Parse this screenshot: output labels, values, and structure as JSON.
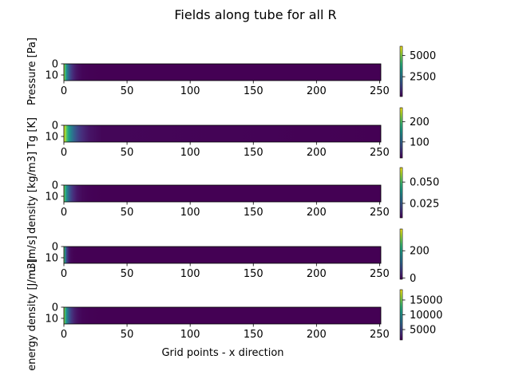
{
  "figure": {
    "title": "Fields along tube for all R",
    "xlabel": "Grid points - x direction"
  },
  "colormap": [
    "#440154",
    "#482878",
    "#3e4989",
    "#31688e",
    "#26828e",
    "#1f9e89",
    "#35b779",
    "#6ece58",
    "#b5de2b",
    "#fde725"
  ],
  "chart_data": [
    {
      "type": "heatmap",
      "ylabel": "Pressure [Pa]",
      "x_ticks": [
        "0",
        "50",
        "100",
        "150",
        "200",
        "250"
      ],
      "y_ticks": [
        "0",
        "10"
      ],
      "xlim": [
        0,
        251
      ],
      "ylim": [
        15,
        0
      ],
      "colorbar": {
        "vmin": 150,
        "vmax": 6100,
        "ticks": [
          {
            "v": 2500,
            "label": "2500"
          },
          {
            "v": 5000,
            "label": "5000"
          }
        ]
      },
      "decay_length": 3.5,
      "peak_fraction": 0.93
    },
    {
      "type": "heatmap",
      "ylabel": "Tg [K]",
      "x_ticks": [
        "0",
        "50",
        "100",
        "150",
        "200",
        "250"
      ],
      "y_ticks": [
        "0",
        "10"
      ],
      "xlim": [
        0,
        251
      ],
      "ylim": [
        15,
        0
      ],
      "colorbar": {
        "vmin": 20,
        "vmax": 270,
        "ticks": [
          {
            "v": 100,
            "label": "100"
          },
          {
            "v": 200,
            "label": "200"
          }
        ]
      },
      "decay_length": 7.0,
      "peak_fraction": 1.0
    },
    {
      "type": "heatmap",
      "ylabel": "density [kg/m3]",
      "x_ticks": [
        "0",
        "50",
        "100",
        "150",
        "200",
        "250"
      ],
      "y_ticks": [
        "0",
        "10"
      ],
      "xlim": [
        0,
        251
      ],
      "ylim": [
        15,
        0
      ],
      "colorbar": {
        "vmin": 0.008,
        "vmax": 0.067,
        "ticks": [
          {
            "v": 0.025,
            "label": "0.025"
          },
          {
            "v": 0.05,
            "label": "0.050"
          }
        ]
      },
      "decay_length": 4.0,
      "peak_fraction": 0.85
    },
    {
      "type": "heatmap",
      "ylabel": "u [m/s]",
      "x_ticks": [
        "0",
        "50",
        "100",
        "150",
        "200",
        "250"
      ],
      "y_ticks": [
        "0",
        "10"
      ],
      "xlim": [
        0,
        251
      ],
      "ylim": [
        15,
        0
      ],
      "colorbar": {
        "vmin": -10,
        "vmax": 360,
        "ticks": [
          {
            "v": 0,
            "label": "0"
          },
          {
            "v": 200,
            "label": "200"
          }
        ]
      },
      "decay_length": 1.5,
      "peak_fraction": 0.9
    },
    {
      "type": "heatmap",
      "ylabel": "energy density [J/m3]",
      "x_ticks": [
        "0",
        "50",
        "100",
        "150",
        "200",
        "250"
      ],
      "y_ticks": [
        "0",
        "10"
      ],
      "xlim": [
        0,
        251
      ],
      "ylim": [
        15,
        0
      ],
      "colorbar": {
        "vmin": 1500,
        "vmax": 18500,
        "ticks": [
          {
            "v": 5000,
            "label": "5000"
          },
          {
            "v": 10000,
            "label": "10000"
          },
          {
            "v": 15000,
            "label": "15000"
          }
        ]
      },
      "decay_length": 3.5,
      "peak_fraction": 0.92
    }
  ]
}
